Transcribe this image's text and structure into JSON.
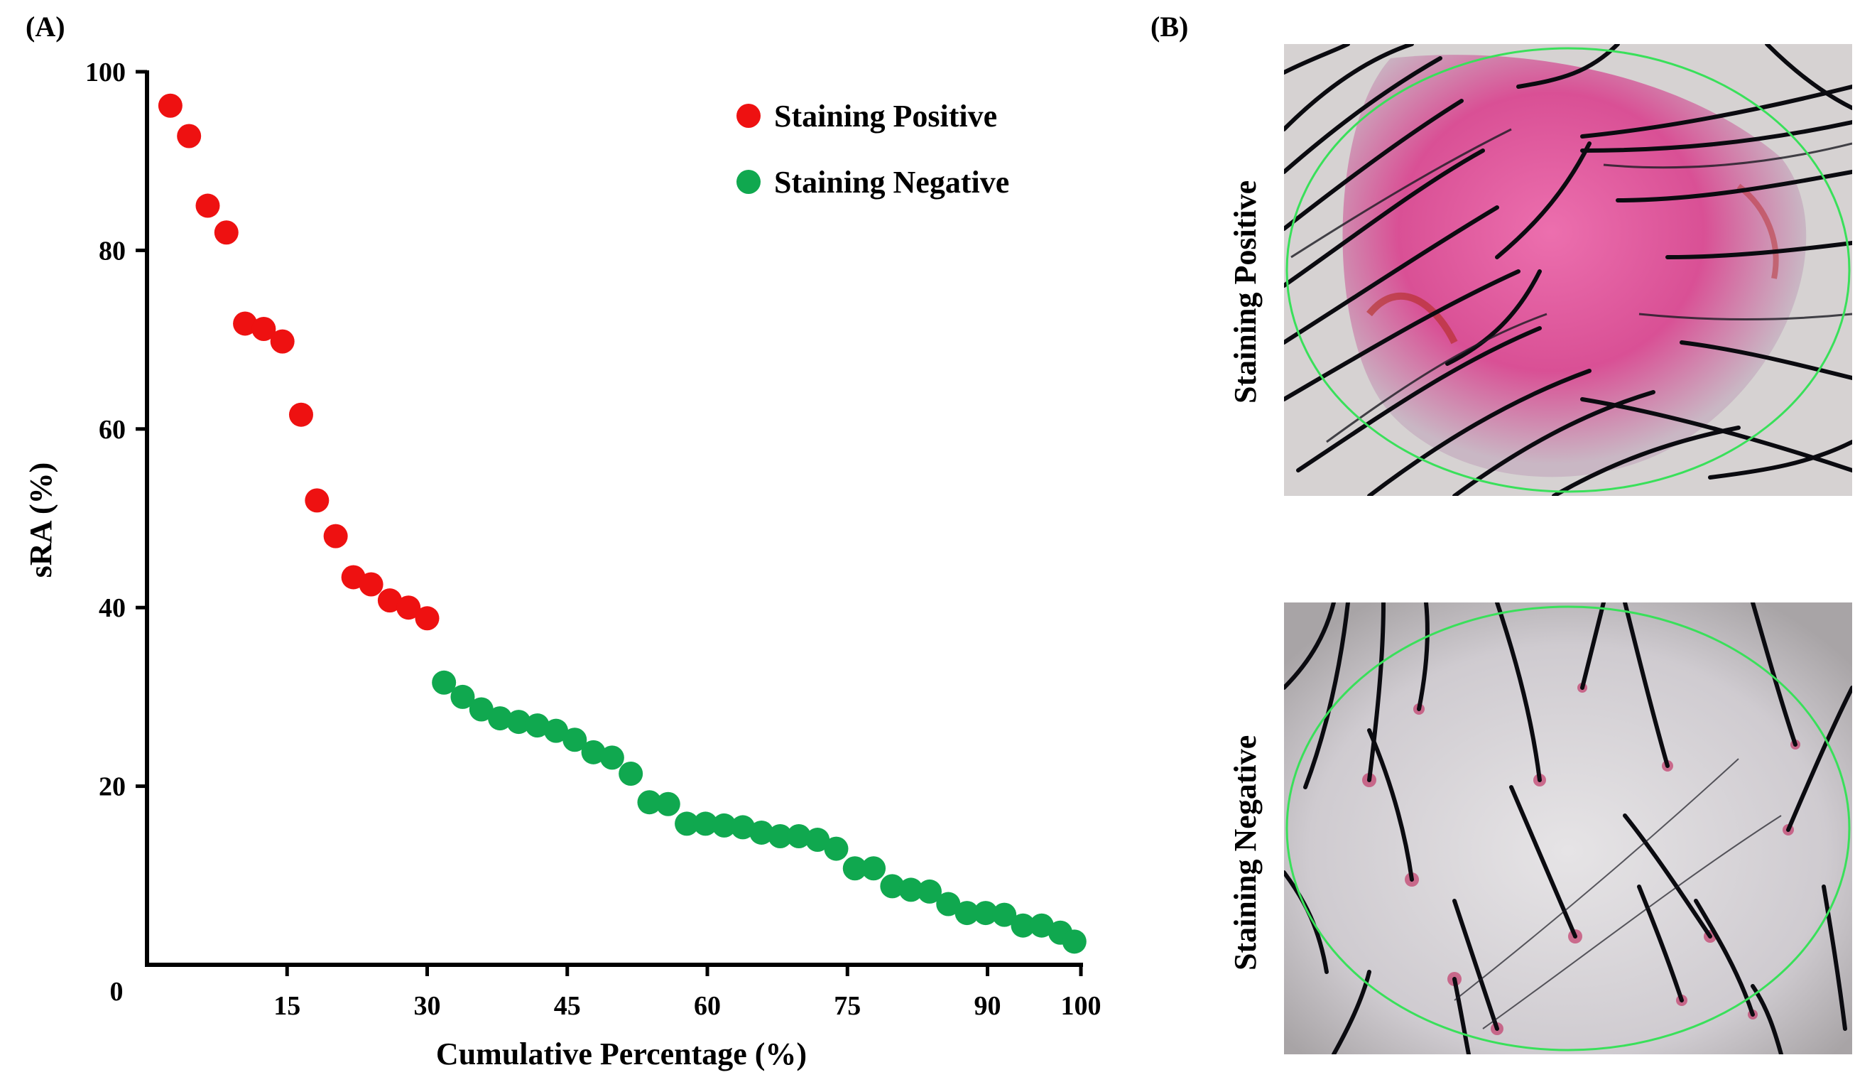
{
  "panels": {
    "a_label": "(A)",
    "b_label": "(B)"
  },
  "chart_data": {
    "type": "scatter",
    "xlabel": "Cumulative Percentage (%)",
    "ylabel": "sRA (%)",
    "xlim": [
      0,
      100
    ],
    "ylim": [
      0,
      100
    ],
    "x_ticks": [
      15,
      30,
      45,
      60,
      75,
      90,
      100
    ],
    "y_ticks": [
      20,
      40,
      60,
      80,
      100
    ],
    "origin_label": "0",
    "legend_position": "top-right",
    "series": [
      {
        "name": "Staining Positive",
        "color": "#ee1111",
        "x": [
          2.5,
          4.5,
          6.5,
          8.5,
          10.5,
          12.5,
          14.5,
          16.5,
          18.2,
          20.2,
          22.1,
          24.0,
          26.0,
          28.0,
          30.0
        ],
        "y": [
          96.2,
          92.8,
          85.0,
          82.0,
          71.8,
          71.2,
          69.8,
          61.6,
          52.0,
          48.0,
          43.4,
          42.6,
          40.8,
          40.0,
          38.8
        ]
      },
      {
        "name": "Staining Negative",
        "color": "#10a84f",
        "x": [
          31.8,
          33.8,
          35.8,
          37.8,
          39.8,
          41.8,
          43.8,
          45.8,
          47.8,
          49.8,
          51.8,
          53.8,
          55.8,
          57.8,
          59.8,
          61.8,
          63.8,
          65.8,
          67.8,
          69.8,
          71.8,
          73.8,
          75.8,
          77.8,
          79.8,
          81.8,
          83.8,
          85.8,
          87.8,
          89.8,
          91.8,
          93.8,
          95.8,
          97.8,
          99.3
        ],
        "y": [
          31.6,
          30.0,
          28.6,
          27.6,
          27.2,
          26.8,
          26.2,
          25.2,
          23.8,
          23.2,
          21.4,
          18.2,
          18.0,
          15.8,
          15.8,
          15.6,
          15.4,
          14.8,
          14.4,
          14.4,
          14.0,
          13.0,
          10.8,
          10.8,
          8.8,
          8.4,
          8.2,
          6.8,
          5.8,
          5.8,
          5.6,
          4.4,
          4.4,
          3.6,
          2.6
        ]
      }
    ]
  },
  "photos": {
    "positive_caption": "Staining Positive",
    "negative_caption": "Staining Negative"
  }
}
